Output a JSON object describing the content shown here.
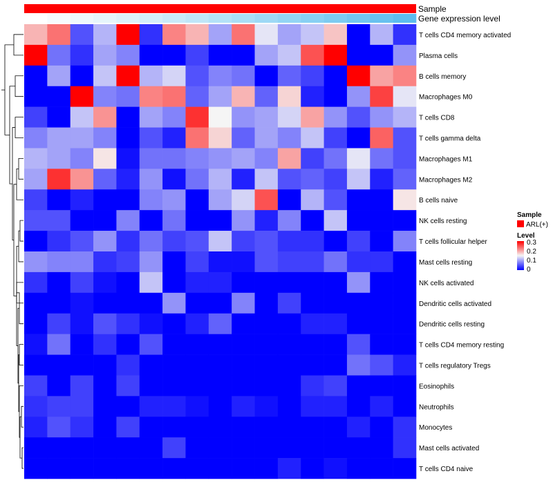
{
  "chart_data": {
    "type": "heatmap",
    "title": "",
    "annotations": [
      {
        "name": "Sample",
        "color": "#ff0000"
      },
      {
        "name": "Gene expression level",
        "colors": [
          "#ffffff",
          "#f6fbfd",
          "#eef8fc",
          "#e6f5fb",
          "#ddf2fa",
          "#d3eefa",
          "#c9eaf9",
          "#bfe6f8",
          "#b4e2f7",
          "#a9def6",
          "#9ed9f5",
          "#93d5f4",
          "#88d0f3",
          "#7dcbf1",
          "#72c6f0",
          "#67c1ef",
          "#5dbcee",
          "#55b9ee"
        ]
      }
    ],
    "rows": [
      "T cells CD4 memory activated",
      "Plasma cells",
      "B cells memory",
      "Macrophages M0",
      "T cells CD8",
      "T cells gamma delta",
      "Macrophages M1",
      "Macrophages M2",
      "B cells naive",
      "NK cells resting",
      "T cells follicular helper",
      "Mast cells resting",
      "NK cells activated",
      "Dendritic cells activated",
      "Dendritic cells resting",
      "T cells CD4 memory resting",
      "T cells regulatory  Tregs",
      "Eosinophils",
      "Neutrophils",
      "Monocytes",
      "Mast cells activated",
      "T cells CD4 naive"
    ],
    "values": [
      [
        0.19,
        0.23,
        0.05,
        0.11,
        0.3,
        0.03,
        0.22,
        0.19,
        0.1,
        0.23,
        0.14,
        0.1,
        0.12,
        0.18,
        0.0,
        0.11,
        0.03
      ],
      [
        0.3,
        0.07,
        0.03,
        0.1,
        0.08,
        0.0,
        0.0,
        0.04,
        0.0,
        0.0,
        0.1,
        0.12,
        0.25,
        0.3,
        0.0,
        0.0,
        0.09
      ],
      [
        0.0,
        0.1,
        0.0,
        0.12,
        0.3,
        0.11,
        0.13,
        0.05,
        0.08,
        0.07,
        0.0,
        0.06,
        0.04,
        0.0,
        0.3,
        0.2,
        0.22
      ],
      [
        0.0,
        0.0,
        0.3,
        0.08,
        0.07,
        0.22,
        0.23,
        0.06,
        0.1,
        0.19,
        0.06,
        0.17,
        0.02,
        0.0,
        0.09,
        0.26,
        0.14
      ],
      [
        0.04,
        0.0,
        0.12,
        0.21,
        0.0,
        0.1,
        0.08,
        0.27,
        0.15,
        0.09,
        0.1,
        0.13,
        0.2,
        0.09,
        0.05,
        0.09,
        0.11
      ],
      [
        0.08,
        0.1,
        0.1,
        0.08,
        0.0,
        0.05,
        0.02,
        0.23,
        0.17,
        0.06,
        0.1,
        0.08,
        0.12,
        0.04,
        0.0,
        0.24,
        0.05
      ],
      [
        0.11,
        0.1,
        0.08,
        0.16,
        0.01,
        0.07,
        0.07,
        0.08,
        0.09,
        0.1,
        0.08,
        0.2,
        0.04,
        0.07,
        0.14,
        0.07,
        0.05
      ],
      [
        0.1,
        0.27,
        0.21,
        0.06,
        0.02,
        0.09,
        0.01,
        0.07,
        0.11,
        0.02,
        0.12,
        0.05,
        0.06,
        0.04,
        0.12,
        0.02,
        0.06
      ],
      [
        0.04,
        0.0,
        0.02,
        0.0,
        0.0,
        0.08,
        0.09,
        0.0,
        0.1,
        0.13,
        0.25,
        0.0,
        0.11,
        0.05,
        0.0,
        0.0,
        0.16
      ],
      [
        0.05,
        0.05,
        0.0,
        0.0,
        0.08,
        0.0,
        0.07,
        0.0,
        0.0,
        0.09,
        0.02,
        0.08,
        0.0,
        0.12,
        0.0,
        0.0,
        0.0
      ],
      [
        0.0,
        0.03,
        0.05,
        0.09,
        0.03,
        0.07,
        0.04,
        0.05,
        0.12,
        0.04,
        0.05,
        0.03,
        0.03,
        0.0,
        0.04,
        0.0,
        0.08
      ],
      [
        0.09,
        0.08,
        0.08,
        0.03,
        0.04,
        0.09,
        0.0,
        0.04,
        0.01,
        0.01,
        0.05,
        0.04,
        0.04,
        0.07,
        0.03,
        0.03,
        0.0
      ],
      [
        0.03,
        0.0,
        0.04,
        0.01,
        0.0,
        0.12,
        0.0,
        0.02,
        0.02,
        0.0,
        0.0,
        0.0,
        0.0,
        0.0,
        0.09,
        0.0,
        0.0
      ],
      [
        0.0,
        0.0,
        0.01,
        0.0,
        0.0,
        0.0,
        0.09,
        0.0,
        0.0,
        0.08,
        0.0,
        0.04,
        0.0,
        0.0,
        0.0,
        0.0,
        0.0
      ],
      [
        0.0,
        0.04,
        0.01,
        0.05,
        0.03,
        0.01,
        0.0,
        0.02,
        0.06,
        0.0,
        0.0,
        0.0,
        0.02,
        0.02,
        0.0,
        0.0,
        0.0
      ],
      [
        0.01,
        0.07,
        0.0,
        0.03,
        0.0,
        0.05,
        0.0,
        0.0,
        0.0,
        0.0,
        0.0,
        0.0,
        0.0,
        0.0,
        0.05,
        0.0,
        0.0
      ],
      [
        0.0,
        0.0,
        0.0,
        0.0,
        0.03,
        0.0,
        0.0,
        0.0,
        0.0,
        0.0,
        0.0,
        0.0,
        0.0,
        0.0,
        0.07,
        0.05,
        0.02
      ],
      [
        0.04,
        0.0,
        0.04,
        0.0,
        0.04,
        0.0,
        0.0,
        0.0,
        0.0,
        0.0,
        0.0,
        0.0,
        0.03,
        0.04,
        0.0,
        0.0,
        0.0
      ],
      [
        0.03,
        0.04,
        0.04,
        0.0,
        0.0,
        0.02,
        0.02,
        0.01,
        0.0,
        0.02,
        0.01,
        0.0,
        0.02,
        0.02,
        0.0,
        0.02,
        0.0
      ],
      [
        0.02,
        0.05,
        0.03,
        0.0,
        0.04,
        0.0,
        0.0,
        0.0,
        0.0,
        0.0,
        0.0,
        0.0,
        0.0,
        0.0,
        0.02,
        0.0,
        0.03
      ],
      [
        0.0,
        0.0,
        0.0,
        0.0,
        0.0,
        0.0,
        0.04,
        0.0,
        0.0,
        0.0,
        0.0,
        0.0,
        0.0,
        0.0,
        0.0,
        0.0,
        0.03
      ],
      [
        0.0,
        0.0,
        0.0,
        0.0,
        0.0,
        0.0,
        0.0,
        0.0,
        0.0,
        0.0,
        0.0,
        0.02,
        0.0,
        0.01,
        0.0,
        0.0,
        0.0
      ]
    ],
    "color_scale": {
      "min": 0,
      "max": 0.3,
      "low": "#0000ff",
      "mid": "#f5f5f5",
      "high": "#ff0000"
    },
    "legend": {
      "placement": "right",
      "sample": {
        "title": "Sample",
        "label": "ARL(+)",
        "color": "#ff0000"
      },
      "level": {
        "title": "Level",
        "ticks": [
          "0.3",
          "0.2",
          "0.1",
          "0"
        ]
      }
    },
    "dendrogram": "rows"
  }
}
